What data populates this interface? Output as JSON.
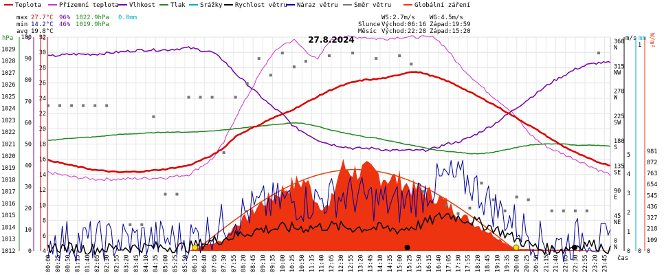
{
  "legend": [
    {
      "label": "Teplota",
      "color": "#dd0000"
    },
    {
      "label": "Přízemní teplota",
      "color": "#cc33cc"
    },
    {
      "label": "Vlhkost",
      "color": "#7700aa"
    },
    {
      "label": "Tlak",
      "color": "#228822"
    },
    {
      "label": "Srážky",
      "color": "#00aacc"
    },
    {
      "label": "Rychlost větru",
      "color": "#000000"
    },
    {
      "label": "Náraz větru",
      "color": "#000099"
    },
    {
      "label": "Směr větru",
      "color": "#777777"
    },
    {
      "label": "Globální záření",
      "color": "#ee3311"
    }
  ],
  "stats": {
    "max": {
      "label": "max",
      "temp": "27.7°C",
      "hum": "96%",
      "press": "1022.9hPa",
      "rain": "0.0mm"
    },
    "min": {
      "label": "min",
      "temp": "14.2°C",
      "hum": "46%",
      "press": "1019.9hPa"
    },
    "avg": {
      "label": "avg",
      "temp": "19.8°C"
    }
  },
  "info": {
    "ws": "WS:2.7m/s",
    "wg": "WG:4.5m/s",
    "sun_label": "Slunce",
    "sunrise": "Východ:06:16",
    "sunset": "Západ:19:59",
    "moon_label": "Měsíc",
    "moonrise": "Východ:22:28",
    "moonset": "Západ:15:20"
  },
  "date": "27.8.2024",
  "axis_units": {
    "hpa": "hPa",
    "pct": "%",
    "degc": "°C",
    "ms": "m/s",
    "mm": "mm",
    "wm2": "W/m²",
    "cas": "čas"
  },
  "colors": {
    "temp": "#dd0000",
    "ground": "#cc33cc",
    "hum": "#7700aa",
    "press": "#228822",
    "rain": "#00aacc",
    "wind": "#000000",
    "gust": "#000099",
    "dir": "#777777",
    "rad": "#ee3311"
  },
  "chart_data": {
    "type": "line",
    "x_labels": [
      "00:00",
      "00:25",
      "00:50",
      "01:15",
      "01:40",
      "02:05",
      "02:30",
      "02:55",
      "03:20",
      "03:45",
      "04:10",
      "04:35",
      "05:00",
      "05:25",
      "05:50",
      "06:15",
      "06:40",
      "07:05",
      "07:30",
      "07:55",
      "08:20",
      "08:45",
      "09:10",
      "09:35",
      "10:00",
      "10:25",
      "10:50",
      "11:15",
      "11:40",
      "12:05",
      "12:30",
      "12:55",
      "13:20",
      "13:45",
      "14:10",
      "14:35",
      "15:00",
      "15:25",
      "15:50",
      "16:15",
      "16:40",
      "17:05",
      "17:30",
      "17:55",
      "18:20",
      "18:45",
      "19:10",
      "19:35",
      "20:00",
      "20:25",
      "20:50",
      "21:15",
      "21:40",
      "22:05",
      "22:30",
      "22:55",
      "23:20",
      "23:45"
    ],
    "axes": {
      "pressure_hpa": {
        "min": 1012,
        "max": 1030,
        "ticks": [
          1012,
          1013,
          1014,
          1015,
          1016,
          1017,
          1018,
          1019,
          1020,
          1021,
          1022,
          1023,
          1024,
          1025,
          1026,
          1027,
          1028,
          1029
        ]
      },
      "humidity_pct": {
        "min": 0,
        "max": 100,
        "ticks": [
          0,
          10,
          20,
          30,
          40,
          50,
          60,
          70,
          80,
          90,
          100
        ]
      },
      "temperature_c": {
        "min": 4,
        "max": 32,
        "ticks": [
          4,
          6,
          8,
          10,
          12,
          14,
          16,
          18,
          20,
          22,
          24,
          26,
          28,
          30,
          32
        ]
      },
      "wind_dir": {
        "ticks": [
          {
            "v": "0",
            "c": "N"
          },
          {
            "v": "45",
            "c": "NE"
          },
          {
            "v": "90",
            "c": "E"
          },
          {
            "v": "135",
            "c": "SE"
          },
          {
            "v": "180",
            "c": "S"
          },
          {
            "v": "225",
            "c": "SW"
          },
          {
            "v": "270",
            "c": "W"
          },
          {
            "v": "315",
            "c": "NW"
          },
          {
            "v": "360",
            "c": "N"
          }
        ]
      },
      "wind_ms": {
        "min": 0,
        "max": 5,
        "ticks": [
          "0",
          "1",
          "2",
          "3",
          "4",
          "5"
        ]
      },
      "rain_mm": {
        "min": 0,
        "max": 1,
        "ticks": [
          "0",
          "1"
        ]
      },
      "radiation_wm2": {
        "min": 0,
        "max": 1000,
        "ticks": [
          "0",
          "109",
          "218",
          "327",
          "436",
          "545",
          "654",
          "763",
          "872",
          "981"
        ]
      }
    },
    "series": [
      {
        "name": "Teplota",
        "unit": "°C",
        "x_hours": [
          0,
          1,
          2,
          3,
          4,
          5,
          6,
          7,
          7.5,
          8,
          8.5,
          9,
          9.5,
          10,
          10.5,
          11,
          11.5,
          12,
          12.5,
          13,
          13.5,
          14,
          14.5,
          15,
          15.5,
          16,
          16.5,
          17,
          17.5,
          18,
          18.5,
          19,
          19.5,
          20,
          20.5,
          21,
          21.5,
          22,
          22.5,
          23,
          23.5,
          24
        ],
        "values": [
          15.9,
          15.2,
          14.6,
          14.3,
          14.4,
          14.7,
          15.2,
          16.5,
          17.5,
          19.0,
          19.8,
          20.5,
          21.3,
          21.9,
          22.6,
          23.4,
          24.2,
          25.0,
          25.6,
          26.1,
          26.4,
          26.5,
          26.7,
          27.1,
          27.5,
          27.3,
          26.8,
          26.3,
          25.6,
          24.8,
          24.0,
          23.2,
          22.3,
          21.4,
          20.5,
          19.6,
          18.6,
          17.7,
          16.9,
          16.2,
          15.6,
          15.2
        ]
      },
      {
        "name": "Přízemní teplota",
        "unit": "°C",
        "x_hours": [
          0,
          1,
          2,
          3,
          4,
          5,
          6,
          7,
          7.5,
          8,
          8.5,
          9,
          9.5,
          10,
          10.5,
          11,
          11.5,
          12,
          12.5,
          13,
          13.5,
          14,
          14.5,
          15,
          15.5,
          16,
          16.5,
          17,
          17.5,
          18,
          18.5,
          19,
          19.5,
          20,
          20.5,
          21,
          21.5,
          22,
          22.5,
          23,
          23.5,
          24
        ],
        "values": [
          14.3,
          13.7,
          13.4,
          13.4,
          13.5,
          13.6,
          14.0,
          16.0,
          18.2,
          21.5,
          24.2,
          27.0,
          29.5,
          31.0,
          31.6,
          30.2,
          29.0,
          31.5,
          32.0,
          32.0,
          32.0,
          31.8,
          31.8,
          32.0,
          32.0,
          32.0,
          32.0,
          30.5,
          28.5,
          27.0,
          25.5,
          24.2,
          23.0,
          21.5,
          19.5,
          18.2,
          17.3,
          16.7,
          16.0,
          15.3,
          14.6,
          14.0
        ]
      },
      {
        "name": "Vlhkost",
        "unit": "%",
        "x_hours": [
          0,
          1,
          2,
          3,
          4,
          5,
          6,
          7,
          7.5,
          8,
          8.5,
          9,
          9.5,
          10,
          10.5,
          11,
          11.5,
          12,
          12.5,
          13,
          13.5,
          14,
          14.5,
          15,
          15.5,
          16,
          16.5,
          17,
          17.5,
          18,
          18.5,
          19,
          19.5,
          20,
          20.5,
          21,
          21.5,
          22,
          22.5,
          23,
          23.5,
          24
        ],
        "values": [
          91,
          92,
          92,
          93,
          94,
          94,
          95,
          93,
          89,
          83,
          78,
          73,
          68,
          64,
          58,
          55,
          52,
          50,
          49,
          48,
          48,
          48,
          47,
          47,
          47,
          47,
          48,
          50,
          51,
          53,
          56,
          59,
          63,
          67,
          71,
          75,
          79,
          82,
          85,
          87,
          88,
          88
        ]
      },
      {
        "name": "Tlak",
        "unit": "hPa",
        "x_hours": [
          0,
          1,
          2,
          3,
          4,
          5,
          6,
          7,
          7.5,
          8,
          8.5,
          9,
          9.5,
          10,
          10.5,
          11,
          11.5,
          12,
          12.5,
          13,
          13.5,
          14,
          14.5,
          15,
          15.5,
          16,
          16.5,
          17,
          17.5,
          18,
          18.5,
          19,
          19.5,
          20,
          20.5,
          21,
          21.5,
          22,
          22.5,
          23,
          23.5,
          24
        ],
        "values": [
          1021.3,
          1021.5,
          1021.6,
          1021.8,
          1021.9,
          1022.0,
          1022.0,
          1022.1,
          1022.2,
          1022.3,
          1022.4,
          1022.5,
          1022.6,
          1022.7,
          1022.8,
          1022.7,
          1022.5,
          1022.2,
          1022.0,
          1021.8,
          1021.6,
          1021.5,
          1021.3,
          1021.1,
          1020.9,
          1020.7,
          1020.5,
          1020.4,
          1020.3,
          1020.2,
          1020.2,
          1020.3,
          1020.5,
          1020.7,
          1020.9,
          1021.0,
          1021.0,
          1021.0,
          1020.9,
          1020.9,
          1020.9,
          1020.8
        ]
      },
      {
        "name": "Rychlost větru",
        "unit": "m/s",
        "x_hours": [
          0,
          2,
          4,
          6,
          7,
          8,
          9,
          10,
          11,
          12,
          13,
          14,
          15,
          16,
          17,
          18,
          19,
          20,
          21,
          22,
          23,
          24
        ],
        "values": [
          0.2,
          0.1,
          0.2,
          0.2,
          0.5,
          0.8,
          1.1,
          1.2,
          1.2,
          1.3,
          1.2,
          1.2,
          1.1,
          1.4,
          1.9,
          1.6,
          1.2,
          0.6,
          0.1,
          0.1,
          0.4,
          0.1
        ]
      },
      {
        "name": "Náraz větru",
        "unit": "m/s",
        "x_hours": [
          0,
          2,
          4,
          6,
          7,
          8,
          9,
          10,
          11,
          12,
          13,
          14,
          15,
          16,
          17,
          18,
          19,
          20,
          21,
          22,
          23,
          24
        ],
        "values": [
          0.6,
          0.5,
          0.6,
          0.6,
          1.1,
          1.8,
          2.3,
          2.6,
          2.5,
          2.8,
          2.9,
          2.6,
          2.4,
          3.0,
          3.8,
          3.6,
          2.3,
          1.4,
          0.5,
          0.3,
          0.9,
          0.2
        ]
      },
      {
        "name": "Globální záření",
        "unit": "W/m²",
        "x_hours": [
          0,
          6,
          6.5,
          7,
          7.5,
          8,
          8.5,
          9,
          9.5,
          10,
          10.5,
          11,
          11.5,
          12,
          12.5,
          13,
          13.5,
          14,
          14.5,
          15,
          15.5,
          16,
          16.5,
          17,
          17.5,
          18,
          18.5,
          19,
          19.5,
          20,
          24
        ],
        "values": [
          0,
          0,
          40,
          70,
          110,
          260,
          330,
          450,
          520,
          600,
          660,
          690,
          480,
          420,
          830,
          790,
          780,
          760,
          720,
          700,
          620,
          590,
          540,
          470,
          370,
          300,
          230,
          160,
          80,
          20,
          0
        ]
      },
      {
        "name": "Srážky",
        "unit": "mm",
        "x_hours": [
          0,
          24
        ],
        "values": [
          0,
          0
        ]
      }
    ],
    "wind_direction_deg": [
      {
        "h": 0,
        "v": 250
      },
      {
        "h": 0.5,
        "v": 250
      },
      {
        "h": 1,
        "v": 250
      },
      {
        "h": 1.5,
        "v": 250
      },
      {
        "h": 2,
        "v": 250
      },
      {
        "h": 2.5,
        "v": 250
      },
      {
        "h": 3.5,
        "v": 35
      },
      {
        "h": 4,
        "v": 35
      },
      {
        "h": 4.5,
        "v": 230
      },
      {
        "h": 5,
        "v": 90
      },
      {
        "h": 5.5,
        "v": 90
      },
      {
        "h": 6,
        "v": 265
      },
      {
        "h": 6.5,
        "v": 265
      },
      {
        "h": 7,
        "v": 265
      },
      {
        "h": 7.5,
        "v": 165
      },
      {
        "h": 8,
        "v": 265
      },
      {
        "h": 8.5,
        "v": 290
      },
      {
        "h": 9,
        "v": 335
      },
      {
        "h": 9.5,
        "v": 305
      },
      {
        "h": 10,
        "v": 345
      },
      {
        "h": 10.5,
        "v": 320
      },
      {
        "h": 11,
        "v": 330
      },
      {
        "h": 12,
        "v": 340
      },
      {
        "h": 13,
        "v": 345
      },
      {
        "h": 14,
        "v": 335
      },
      {
        "h": 15,
        "v": 340
      },
      {
        "h": 15.5,
        "v": 325
      },
      {
        "h": 16,
        "v": 95
      },
      {
        "h": 17,
        "v": 70
      },
      {
        "h": 17.5,
        "v": 55
      },
      {
        "h": 18,
        "v": 65
      },
      {
        "h": 18.5,
        "v": 110
      },
      {
        "h": 19,
        "v": 80
      },
      {
        "h": 19.5,
        "v": 60
      },
      {
        "h": 20,
        "v": 85
      },
      {
        "h": 20.5,
        "v": 80
      },
      {
        "h": 21.5,
        "v": 60
      },
      {
        "h": 22,
        "v": 60
      },
      {
        "h": 22.5,
        "v": 60
      },
      {
        "h": 23,
        "v": 60
      },
      {
        "h": 23.5,
        "v": 345
      }
    ],
    "sun_markers": {
      "sunrise_h": 6.27,
      "sunset_h": 19.98,
      "moonrise_h": 22.47,
      "moonset_h": 15.33
    },
    "clear_sky_max_wm2": 800,
    "grid": true
  }
}
